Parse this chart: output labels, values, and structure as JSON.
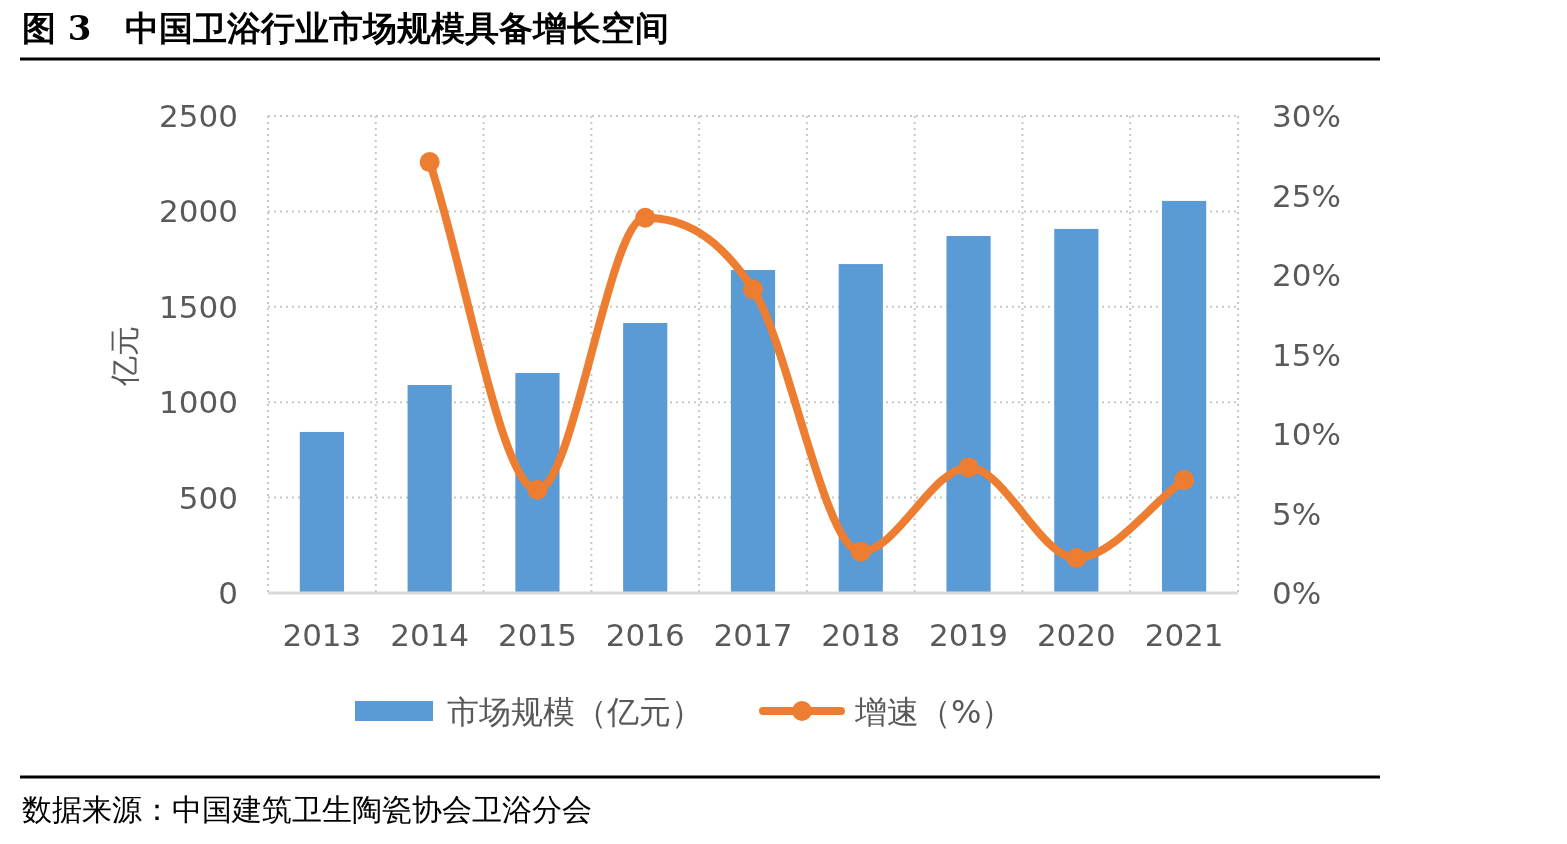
{
  "chart_data": {
    "type": "bar",
    "title": "图 3　中国卫浴行业市场规模具备增长空间",
    "categories": [
      "2013",
      "2014",
      "2015",
      "2016",
      "2017",
      "2018",
      "2019",
      "2020",
      "2021"
    ],
    "ylabel": "亿元",
    "series": [
      {
        "name": "市场规模（亿元）",
        "color": "#5b9bd5",
        "values": [
          844,
          1090,
          1153,
          1415,
          1693,
          1724,
          1871,
          1908,
          2055
        ]
      },
      {
        "name": "增速（%）",
        "type": "line",
        "axis": "y2",
        "color": "#ed7d31",
        "marker": "circle",
        "values": [
          null,
          27.1,
          6.5,
          23.6,
          19.1,
          2.6,
          7.9,
          2.2,
          7.1
        ]
      }
    ],
    "ylim": [
      0,
      2500
    ],
    "yticks": [
      0,
      500,
      1000,
      1500,
      2000,
      2500
    ],
    "y2lim": [
      0,
      30
    ],
    "y2ticks": [
      {
        "value": 0,
        "label": "0%"
      },
      {
        "value": 5,
        "label": "5%"
      },
      {
        "value": 10,
        "label": "10%"
      },
      {
        "value": 15,
        "label": "15%"
      },
      {
        "value": 20,
        "label": "20%"
      },
      {
        "value": 25,
        "label": "25%"
      },
      {
        "value": 30,
        "label": "30%"
      }
    ],
    "grid": true,
    "legend": "bottom",
    "annotations": [
      "数据来源：中国建筑卫生陶瓷协会卫浴分会"
    ]
  }
}
